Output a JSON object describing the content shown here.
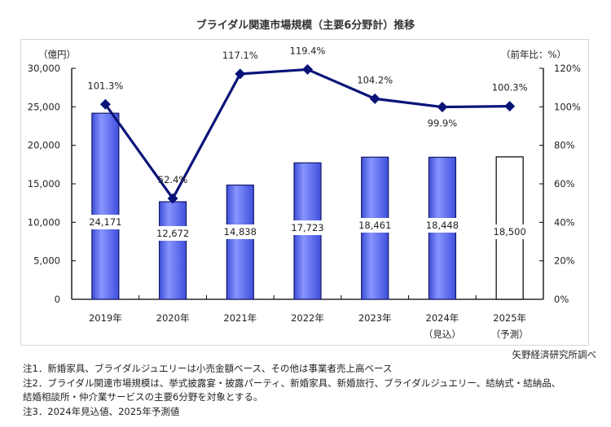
{
  "title": "ブライダル関連市場規模（主要6分野計）推移",
  "source": "矢野経済研究所調べ",
  "notes": [
    "注1．新婚家具、ブライダルジュエリーは小売金額ベース、その他は事業者売上高ベース",
    "注2．ブライダル関連市場規模は、挙式披露宴・披露パーティ、新婚家具、新婚旅行、ブライダルジュエリー、結納式・結納品、",
    "結婚相談所・仲介業サービスの主要6分野を対象とする。",
    "注3．2024年見込値、2025年予測値"
  ],
  "chart_data": {
    "type": "bar+line",
    "title": "ブライダル関連市場規模（主要6分野計）推移",
    "categories": [
      "2019年",
      "2020年",
      "2021年",
      "2022年",
      "2023年",
      "2024年",
      "2025年"
    ],
    "category_sublabels": [
      "",
      "",
      "",
      "",
      "",
      "（見込）",
      "（予測）"
    ],
    "y_left": {
      "label": "（億円）",
      "min": 0,
      "max": 30000,
      "ticks": [
        0,
        5000,
        10000,
        15000,
        20000,
        25000,
        30000
      ],
      "tick_labels": [
        "0",
        "5,000",
        "10,000",
        "15,000",
        "20,000",
        "25,000",
        "30,000"
      ]
    },
    "y_right": {
      "label": "（前年比：%）",
      "min": 0,
      "max": 120,
      "ticks": [
        0,
        20,
        40,
        60,
        80,
        100,
        120
      ],
      "tick_labels": [
        "0%",
        "20%",
        "40%",
        "60%",
        "80%",
        "100%",
        "120%"
      ]
    },
    "series": [
      {
        "name": "市場規模",
        "type": "bar",
        "axis": "left",
        "values": [
          24171,
          12672,
          14838,
          17723,
          18461,
          18448,
          18500
        ],
        "labels": [
          "24,171",
          "12,672",
          "14,838",
          "17,723",
          "18,461",
          "18,448",
          "18,500"
        ],
        "forecast": [
          false,
          false,
          false,
          false,
          false,
          false,
          true
        ],
        "color": "#5a6cf0"
      },
      {
        "name": "前年比",
        "type": "line",
        "axis": "right",
        "values": [
          101.3,
          52.4,
          117.1,
          119.4,
          104.2,
          99.9,
          100.3
        ],
        "labels": [
          "101.3%",
          "52.4%",
          "117.1%",
          "119.4%",
          "104.2%",
          "99.9%",
          "100.3%"
        ],
        "color": "#0a1478"
      }
    ],
    "grid": false,
    "legend": "none"
  }
}
